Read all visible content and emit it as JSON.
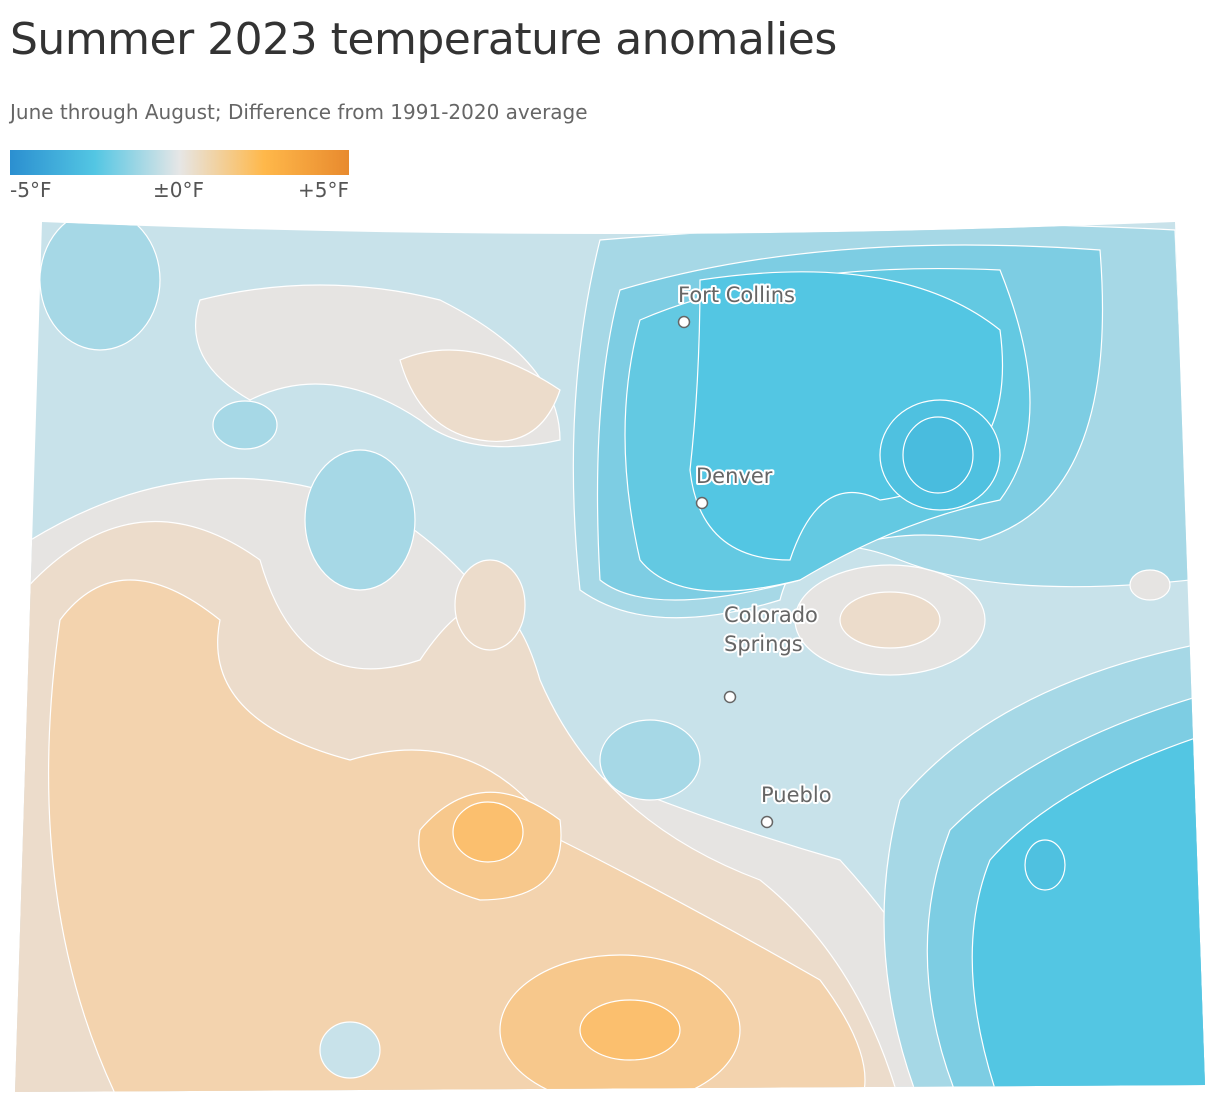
{
  "header": {
    "title": "Summer 2023 temperature anomalies",
    "subtitle": "June through August; Difference from 1991-2020 average"
  },
  "legend": {
    "labels": [
      "-5°F",
      "±0°F",
      "+5°F"
    ],
    "colors": [
      "#2b8fd0",
      "#53c6e3",
      "#e6e6e6",
      "#ffb84a",
      "#e88a2e"
    ]
  },
  "cities": [
    {
      "lines": [
        "Fort Collins"
      ]
    },
    {
      "lines": [
        "Denver"
      ]
    },
    {
      "lines": [
        "Colorado",
        "Springs"
      ]
    },
    {
      "lines": [
        "Pueblo"
      ]
    }
  ]
}
